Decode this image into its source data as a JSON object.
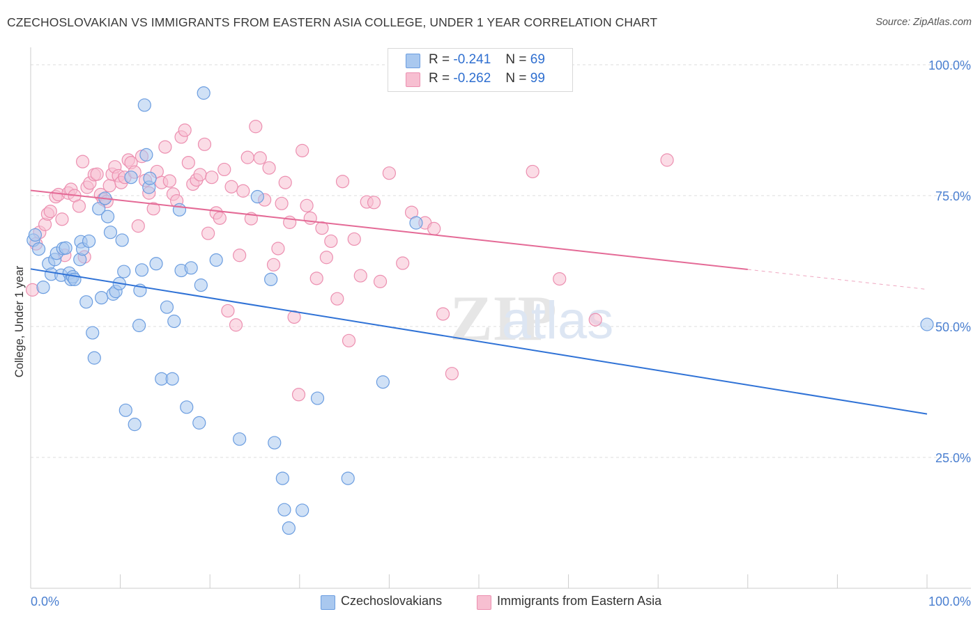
{
  "title": "CZECHOSLOVAKIAN VS IMMIGRANTS FROM EASTERN ASIA COLLEGE, UNDER 1 YEAR CORRELATION CHART",
  "source": "Source: ZipAtlas.com",
  "watermark": "ZIPatlas",
  "legend_top": {
    "rows": [
      {
        "r_label": "R =",
        "r_value": "-0.241",
        "n_label": "N =",
        "n_value": "69",
        "color": "#7aaae8"
      },
      {
        "r_label": "R =",
        "r_value": "-0.262",
        "n_label": "N =",
        "n_value": "99",
        "color": "#f29ab8"
      }
    ]
  },
  "colors": {
    "blue_fill": "#a9c8ef",
    "blue_stroke": "#6b9de0",
    "blue_line": "#2f72d6",
    "pink_fill": "#f7bfd1",
    "pink_stroke": "#ec8fb0",
    "pink_line": "#e46a96",
    "axis_text": "#4a7fd0",
    "grid": "#dddddd"
  },
  "chart_data": {
    "type": "scatter",
    "title": "CZECHOSLOVAKIAN VS IMMIGRANTS FROM EASTERN ASIA COLLEGE, UNDER 1 YEAR CORRELATION CHART",
    "xlabel": "",
    "ylabel": "College, Under 1 year",
    "xlim": [
      0,
      100
    ],
    "ylim": [
      0,
      102
    ],
    "x_tick_labels": [
      "0.0%",
      "100.0%"
    ],
    "y_tick_labels": [
      "25.0%",
      "50.0%",
      "75.0%",
      "100.0%"
    ],
    "y_ticks": [
      25,
      50,
      75,
      100
    ],
    "grid": true,
    "legend_position": "bottom",
    "series": [
      {
        "name": "Czechoslovakians",
        "r": -0.241,
        "n": 69,
        "trend": {
          "x0": 0,
          "y0": 61.0,
          "x1": 100,
          "y1": 33.3
        },
        "points": [
          [
            0.3,
            66.5
          ],
          [
            0.5,
            67.5
          ],
          [
            0.9,
            64.8
          ],
          [
            1.4,
            57.5
          ],
          [
            2.0,
            62.0
          ],
          [
            2.3,
            60.0
          ],
          [
            2.7,
            62.8
          ],
          [
            2.9,
            64.0
          ],
          [
            3.4,
            59.8
          ],
          [
            3.6,
            64.9
          ],
          [
            3.9,
            65.0
          ],
          [
            4.3,
            60.2
          ],
          [
            4.5,
            59.0
          ],
          [
            4.7,
            59.5
          ],
          [
            4.9,
            59.0
          ],
          [
            5.5,
            62.8
          ],
          [
            5.6,
            66.2
          ],
          [
            5.8,
            64.8
          ],
          [
            6.2,
            54.7
          ],
          [
            6.5,
            66.3
          ],
          [
            6.9,
            48.8
          ],
          [
            7.1,
            44.0
          ],
          [
            7.6,
            72.5
          ],
          [
            7.9,
            55.5
          ],
          [
            8.3,
            74.5
          ],
          [
            8.6,
            71.0
          ],
          [
            8.9,
            68.0
          ],
          [
            9.2,
            56.2
          ],
          [
            9.5,
            56.7
          ],
          [
            9.9,
            58.2
          ],
          [
            10.2,
            66.5
          ],
          [
            10.4,
            60.5
          ],
          [
            10.6,
            34.0
          ],
          [
            11.2,
            78.5
          ],
          [
            11.6,
            31.3
          ],
          [
            12.1,
            50.2
          ],
          [
            12.2,
            56.9
          ],
          [
            12.4,
            60.8
          ],
          [
            12.7,
            92.3
          ],
          [
            12.9,
            82.8
          ],
          [
            13.2,
            76.6
          ],
          [
            13.3,
            78.3
          ],
          [
            14.0,
            62.0
          ],
          [
            14.6,
            40.0
          ],
          [
            15.2,
            53.7
          ],
          [
            15.8,
            40.0
          ],
          [
            16.0,
            51.0
          ],
          [
            16.6,
            72.3
          ],
          [
            16.8,
            60.7
          ],
          [
            17.4,
            34.6
          ],
          [
            17.9,
            61.2
          ],
          [
            18.8,
            31.6
          ],
          [
            19.0,
            57.9
          ],
          [
            19.3,
            94.6
          ],
          [
            20.7,
            62.7
          ],
          [
            23.3,
            28.5
          ],
          [
            25.3,
            74.8
          ],
          [
            26.8,
            59.0
          ],
          [
            27.2,
            27.8
          ],
          [
            28.1,
            21.0
          ],
          [
            28.3,
            15.0
          ],
          [
            28.8,
            11.5
          ],
          [
            30.3,
            14.9
          ],
          [
            32.0,
            36.3
          ],
          [
            35.4,
            21.0
          ],
          [
            39.3,
            39.4
          ],
          [
            43.0,
            69.8
          ],
          [
            49.8,
            100.0
          ],
          [
            100.0,
            50.4
          ]
        ]
      },
      {
        "name": "Immigrants from Eastern Asia",
        "r": -0.262,
        "n": 99,
        "trend": {
          "x0": 0,
          "y0": 76.0,
          "x1": 80,
          "y1": 60.9,
          "dash_to_x": 100,
          "dash_to_y": 57.1
        },
        "points": [
          [
            0.2,
            57.0
          ],
          [
            0.6,
            65.8
          ],
          [
            1.0,
            68.0
          ],
          [
            1.6,
            69.5
          ],
          [
            1.9,
            71.5
          ],
          [
            2.2,
            72.0
          ],
          [
            2.8,
            74.8
          ],
          [
            3.1,
            75.2
          ],
          [
            3.5,
            70.5
          ],
          [
            3.8,
            63.6
          ],
          [
            4.2,
            75.5
          ],
          [
            4.5,
            76.2
          ],
          [
            4.9,
            75.0
          ],
          [
            5.4,
            73.0
          ],
          [
            5.8,
            81.5
          ],
          [
            6.0,
            63.3
          ],
          [
            6.3,
            76.6
          ],
          [
            6.6,
            77.4
          ],
          [
            7.1,
            79.0
          ],
          [
            7.4,
            79.1
          ],
          [
            7.8,
            75.2
          ],
          [
            8.1,
            74.3
          ],
          [
            8.5,
            73.9
          ],
          [
            8.8,
            76.9
          ],
          [
            9.1,
            79.1
          ],
          [
            9.4,
            80.5
          ],
          [
            9.8,
            78.8
          ],
          [
            10.1,
            77.5
          ],
          [
            10.5,
            78.5
          ],
          [
            10.9,
            81.8
          ],
          [
            11.2,
            81.3
          ],
          [
            11.6,
            79.5
          ],
          [
            12.0,
            69.2
          ],
          [
            12.4,
            82.5
          ],
          [
            12.8,
            77.9
          ],
          [
            13.2,
            75.5
          ],
          [
            13.7,
            72.5
          ],
          [
            14.1,
            79.6
          ],
          [
            14.6,
            77.5
          ],
          [
            15.0,
            84.3
          ],
          [
            15.5,
            77.8
          ],
          [
            15.9,
            75.3
          ],
          [
            16.3,
            74.0
          ],
          [
            16.8,
            86.2
          ],
          [
            17.2,
            87.5
          ],
          [
            17.6,
            81.3
          ],
          [
            18.1,
            77.2
          ],
          [
            18.5,
            78.0
          ],
          [
            18.9,
            79.0
          ],
          [
            19.4,
            84.8
          ],
          [
            19.8,
            67.8
          ],
          [
            20.2,
            78.5
          ],
          [
            20.7,
            71.7
          ],
          [
            21.1,
            70.7
          ],
          [
            21.6,
            80.0
          ],
          [
            22.0,
            53.0
          ],
          [
            22.4,
            76.7
          ],
          [
            22.9,
            50.3
          ],
          [
            23.3,
            63.6
          ],
          [
            23.7,
            75.9
          ],
          [
            24.2,
            82.3
          ],
          [
            24.6,
            70.6
          ],
          [
            25.1,
            88.2
          ],
          [
            25.6,
            82.2
          ],
          [
            26.1,
            74.2
          ],
          [
            26.6,
            80.3
          ],
          [
            27.1,
            61.8
          ],
          [
            27.6,
            64.9
          ],
          [
            28.0,
            73.5
          ],
          [
            28.4,
            77.5
          ],
          [
            28.9,
            69.9
          ],
          [
            29.4,
            51.8
          ],
          [
            29.9,
            37.0
          ],
          [
            30.3,
            83.6
          ],
          [
            30.8,
            73.1
          ],
          [
            31.2,
            70.7
          ],
          [
            31.9,
            59.2
          ],
          [
            32.5,
            68.8
          ],
          [
            33.0,
            63.2
          ],
          [
            33.5,
            66.3
          ],
          [
            34.2,
            55.3
          ],
          [
            34.8,
            77.7
          ],
          [
            35.5,
            47.3
          ],
          [
            36.1,
            66.7
          ],
          [
            36.8,
            59.7
          ],
          [
            37.5,
            73.8
          ],
          [
            38.3,
            73.7
          ],
          [
            39.0,
            58.6
          ],
          [
            40.0,
            79.3
          ],
          [
            41.5,
            62.1
          ],
          [
            42.5,
            71.8
          ],
          [
            44.0,
            69.8
          ],
          [
            45.0,
            68.7
          ],
          [
            46.0,
            52.4
          ],
          [
            47.0,
            41.0
          ],
          [
            56.0,
            79.6
          ],
          [
            59.0,
            59.1
          ],
          [
            63.0,
            51.3
          ],
          [
            71.0,
            81.8
          ]
        ]
      }
    ]
  }
}
